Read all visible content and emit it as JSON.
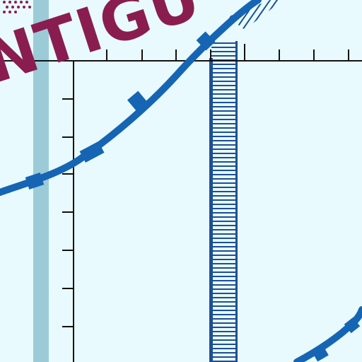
{
  "map": {
    "place_label": "NTIGU",
    "colors": {
      "background": "#e8fafd",
      "label": "#8a1d50",
      "airspace_boundary": "#1565b4",
      "grid": "#111111",
      "light_band": "#9ccbd8",
      "hatched_band": "#1d4f95"
    },
    "features": [
      "curved-airspace-boundary-upper",
      "curved-airspace-boundary-lower",
      "light-blue-vertical-band",
      "blue-hatched-vertical-band",
      "graticule-tick-lines"
    ]
  }
}
